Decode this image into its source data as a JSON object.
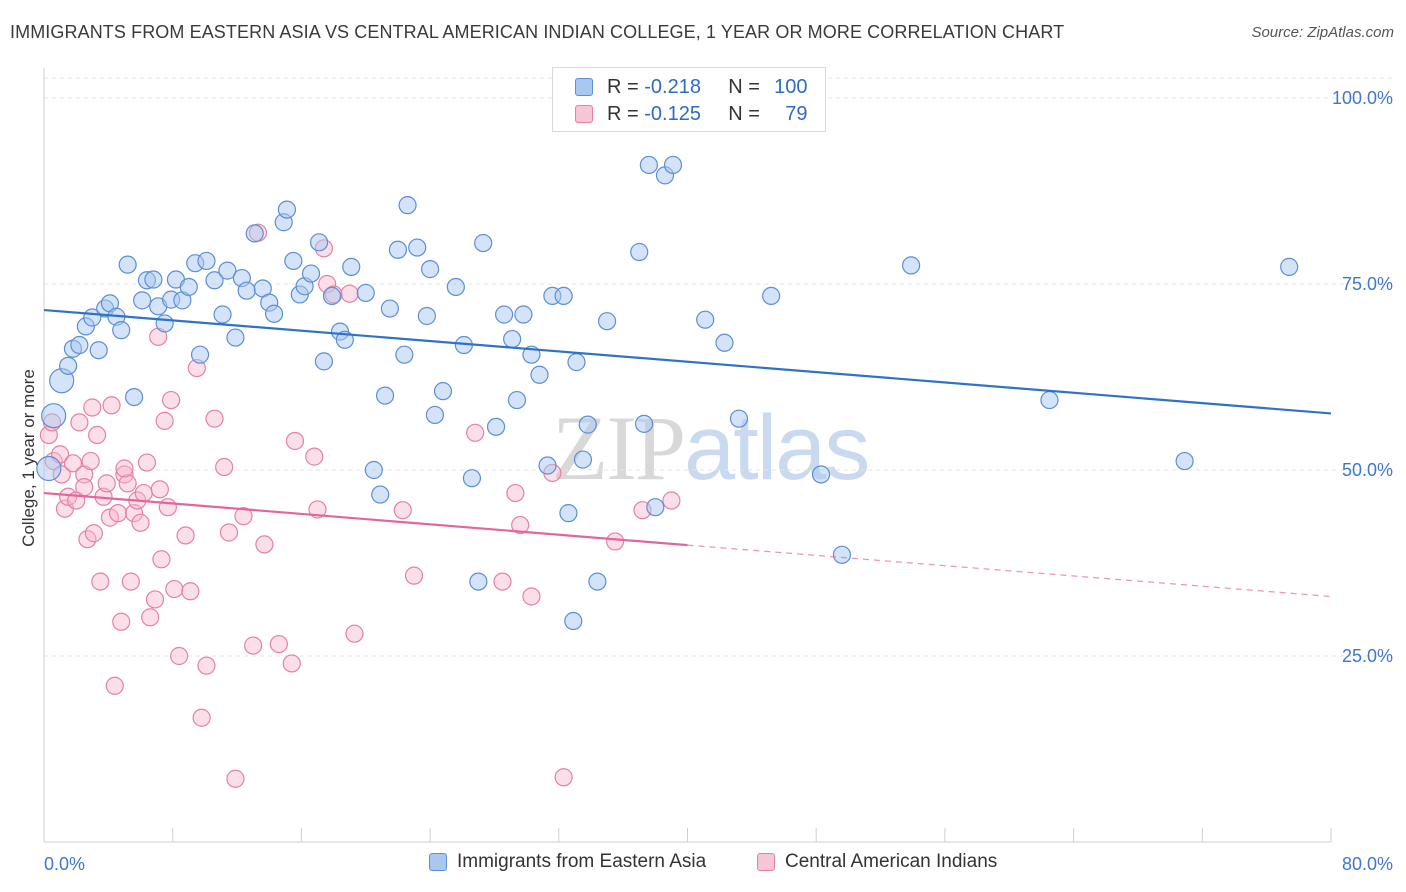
{
  "header": {
    "title": "IMMIGRANTS FROM EASTERN ASIA VS CENTRAL AMERICAN INDIAN COLLEGE, 1 YEAR OR MORE CORRELATION CHART",
    "source": "Source: ZipAtlas.com"
  },
  "watermark": {
    "zip": "ZIP",
    "atlas": "atlas"
  },
  "legend_top": {
    "rows": [
      {
        "r_label": "R = ",
        "r_value": "-0.218",
        "n_label": "N = ",
        "n_value": "100"
      },
      {
        "r_label": "R = ",
        "r_value": "-0.125",
        "n_label": "N = ",
        "n_value": "79"
      }
    ]
  },
  "legend_bottom": {
    "items": [
      {
        "label": "Immigrants from Eastern Asia"
      },
      {
        "label": "Central American Indians"
      }
    ]
  },
  "colors": {
    "blue_fill": "#a9c8ef",
    "blue_stroke": "#5b8fd6",
    "blue_line": "#2f72c8",
    "pink_fill": "#f7b8cc",
    "pink_stroke": "#e680a4",
    "pink_line": "#e2669a",
    "axis_text": "#3f78c9",
    "grid": "#e3e3e3"
  },
  "chart_data": {
    "type": "scatter",
    "title": "IMMIGRANTS FROM EASTERN ASIA VS CENTRAL AMERICAN INDIAN COLLEGE, 1 YEAR OR MORE CORRELATION CHART",
    "xlabel": "",
    "ylabel": "College, 1 year or more",
    "xlim": [
      0,
      80
    ],
    "ylim": [
      0,
      100
    ],
    "x_tick_labels": [
      "0.0%",
      "80.0%"
    ],
    "y_tick_values": [
      25,
      50,
      75,
      100
    ],
    "y_tick_labels": [
      "25.0%",
      "50.0%",
      "75.0%",
      "100.0%"
    ],
    "grid": true,
    "legend_position": "top-center",
    "series": [
      {
        "name": "Immigrants from Eastern Asia",
        "R": -0.218,
        "N": 100,
        "trend": {
          "x0": 0,
          "y0": 71.5,
          "x1": 80,
          "y1": 57.6
        },
        "points": [
          [
            0.3,
            50.2
          ],
          [
            0.6,
            57.3
          ],
          [
            1.1,
            62.0
          ],
          [
            1.5,
            64.0
          ],
          [
            1.8,
            66.3
          ],
          [
            2.2,
            66.8
          ],
          [
            2.6,
            69.3
          ],
          [
            3.0,
            70.5
          ],
          [
            3.4,
            66.1
          ],
          [
            3.8,
            71.7
          ],
          [
            4.1,
            72.4
          ],
          [
            4.5,
            70.6
          ],
          [
            4.8,
            68.8
          ],
          [
            5.2,
            77.6
          ],
          [
            5.6,
            59.8
          ],
          [
            6.1,
            72.8
          ],
          [
            6.4,
            75.5
          ],
          [
            6.8,
            75.6
          ],
          [
            7.1,
            72.0
          ],
          [
            7.5,
            69.7
          ],
          [
            7.9,
            72.9
          ],
          [
            8.2,
            75.6
          ],
          [
            8.6,
            72.8
          ],
          [
            9.0,
            74.6
          ],
          [
            9.4,
            77.8
          ],
          [
            9.7,
            65.5
          ],
          [
            10.1,
            78.1
          ],
          [
            10.6,
            75.5
          ],
          [
            11.1,
            70.9
          ],
          [
            11.4,
            76.8
          ],
          [
            11.9,
            67.8
          ],
          [
            12.3,
            75.8
          ],
          [
            12.6,
            74.1
          ],
          [
            13.1,
            81.8
          ],
          [
            13.6,
            74.4
          ],
          [
            14.0,
            72.5
          ],
          [
            14.3,
            71.0
          ],
          [
            14.9,
            83.3
          ],
          [
            15.1,
            85.0
          ],
          [
            15.5,
            78.1
          ],
          [
            15.9,
            73.6
          ],
          [
            16.2,
            74.7
          ],
          [
            16.6,
            76.4
          ],
          [
            17.1,
            80.6
          ],
          [
            17.4,
            64.6
          ],
          [
            17.9,
            73.4
          ],
          [
            18.4,
            68.6
          ],
          [
            18.7,
            67.5
          ],
          [
            19.1,
            77.3
          ],
          [
            20.0,
            73.8
          ],
          [
            20.5,
            50.0
          ],
          [
            20.9,
            46.7
          ],
          [
            21.2,
            60.0
          ],
          [
            21.5,
            71.7
          ],
          [
            22.0,
            79.6
          ],
          [
            22.4,
            65.5
          ],
          [
            22.6,
            85.6
          ],
          [
            23.2,
            79.9
          ],
          [
            23.8,
            70.7
          ],
          [
            24.0,
            77.0
          ],
          [
            24.3,
            57.4
          ],
          [
            24.8,
            60.6
          ],
          [
            25.6,
            74.6
          ],
          [
            26.1,
            66.8
          ],
          [
            26.6,
            48.9
          ],
          [
            27.0,
            35.0
          ],
          [
            27.3,
            80.5
          ],
          [
            28.1,
            55.8
          ],
          [
            28.6,
            70.9
          ],
          [
            29.1,
            67.6
          ],
          [
            29.4,
            59.4
          ],
          [
            29.8,
            70.9
          ],
          [
            30.3,
            65.5
          ],
          [
            30.8,
            62.8
          ],
          [
            31.3,
            50.6
          ],
          [
            31.6,
            73.4
          ],
          [
            32.3,
            73.4
          ],
          [
            32.6,
            44.2
          ],
          [
            32.9,
            29.7
          ],
          [
            33.1,
            64.5
          ],
          [
            33.5,
            51.4
          ],
          [
            33.8,
            56.1
          ],
          [
            34.4,
            35.0
          ],
          [
            35.0,
            70.0
          ],
          [
            37.0,
            79.3
          ],
          [
            37.3,
            56.2
          ],
          [
            37.6,
            91.0
          ],
          [
            38.0,
            45.0
          ],
          [
            38.6,
            89.6
          ],
          [
            39.1,
            91.0
          ],
          [
            41.1,
            70.2
          ],
          [
            42.3,
            67.1
          ],
          [
            43.2,
            56.9
          ],
          [
            45.2,
            73.4
          ],
          [
            48.3,
            49.4
          ],
          [
            49.6,
            38.6
          ],
          [
            53.9,
            77.5
          ],
          [
            62.5,
            59.4
          ],
          [
            70.9,
            51.2
          ],
          [
            77.4,
            77.3
          ]
        ]
      },
      {
        "name": "Central American Indians",
        "R": -0.125,
        "N": 79,
        "trend": {
          "x0": 0,
          "y0": 46.9,
          "x1": 40,
          "y1": 39.9,
          "dash_to_x": 80,
          "dash_to_y": 33.0
        },
        "points": [
          [
            0.3,
            54.7
          ],
          [
            0.5,
            56.4
          ],
          [
            0.6,
            51.2
          ],
          [
            1.0,
            52.1
          ],
          [
            1.1,
            49.4
          ],
          [
            1.3,
            44.8
          ],
          [
            1.5,
            46.4
          ],
          [
            1.8,
            50.9
          ],
          [
            2.0,
            45.9
          ],
          [
            2.2,
            56.4
          ],
          [
            2.5,
            49.4
          ],
          [
            2.7,
            40.7
          ],
          [
            2.9,
            51.2
          ],
          [
            3.1,
            41.5
          ],
          [
            3.3,
            54.7
          ],
          [
            3.5,
            35.0
          ],
          [
            3.7,
            46.4
          ],
          [
            3.9,
            48.2
          ],
          [
            4.1,
            43.6
          ],
          [
            4.2,
            58.7
          ],
          [
            4.4,
            21.0
          ],
          [
            4.6,
            44.2
          ],
          [
            4.8,
            29.6
          ],
          [
            5.0,
            49.4
          ],
          [
            5.2,
            48.2
          ],
          [
            5.4,
            35.0
          ],
          [
            5.6,
            44.2
          ],
          [
            5.8,
            45.9
          ],
          [
            6.0,
            42.9
          ],
          [
            6.2,
            46.9
          ],
          [
            6.4,
            51.0
          ],
          [
            6.6,
            30.2
          ],
          [
            6.9,
            32.6
          ],
          [
            7.1,
            67.9
          ],
          [
            7.3,
            38.0
          ],
          [
            7.5,
            56.6
          ],
          [
            7.7,
            45.0
          ],
          [
            7.9,
            59.4
          ],
          [
            8.1,
            34.0
          ],
          [
            8.4,
            25.0
          ],
          [
            8.8,
            41.2
          ],
          [
            9.1,
            33.7
          ],
          [
            9.5,
            63.7
          ],
          [
            9.8,
            16.7
          ],
          [
            10.1,
            23.7
          ],
          [
            10.6,
            56.9
          ],
          [
            11.2,
            50.4
          ],
          [
            11.5,
            41.6
          ],
          [
            11.9,
            8.5
          ],
          [
            12.4,
            43.8
          ],
          [
            13.0,
            26.4
          ],
          [
            13.3,
            81.9
          ],
          [
            13.7,
            40.0
          ],
          [
            14.6,
            26.6
          ],
          [
            15.4,
            24.0
          ],
          [
            15.6,
            53.9
          ],
          [
            16.8,
            51.8
          ],
          [
            17.0,
            44.7
          ],
          [
            17.4,
            79.8
          ],
          [
            17.6,
            75.0
          ],
          [
            18.0,
            73.6
          ],
          [
            19.0,
            73.7
          ],
          [
            19.3,
            28.0
          ],
          [
            22.3,
            44.6
          ],
          [
            23.0,
            35.8
          ],
          [
            26.8,
            55.0
          ],
          [
            28.5,
            35.0
          ],
          [
            29.3,
            46.9
          ],
          [
            29.6,
            42.6
          ],
          [
            30.3,
            33.0
          ],
          [
            31.6,
            49.6
          ],
          [
            32.3,
            8.7
          ],
          [
            35.5,
            40.4
          ],
          [
            37.2,
            44.6
          ],
          [
            39.0,
            45.9
          ],
          [
            2.5,
            47.7
          ],
          [
            3.0,
            58.4
          ],
          [
            5.0,
            50.2
          ],
          [
            7.2,
            47.4
          ]
        ]
      }
    ]
  }
}
